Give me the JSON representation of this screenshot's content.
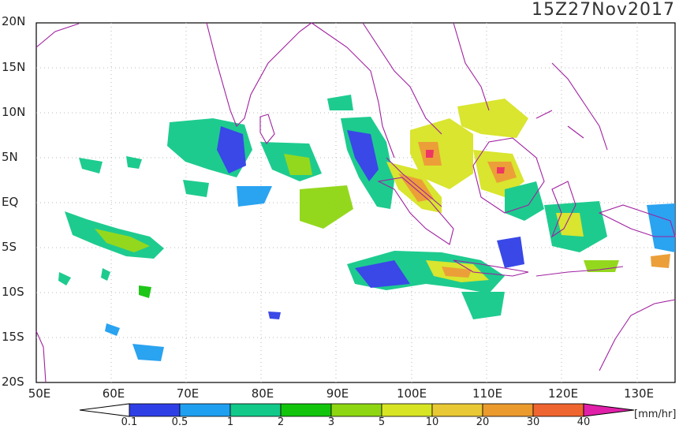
{
  "timestamp": "15Z27Nov2017",
  "axes": {
    "lat_labels": [
      "20N",
      "15N",
      "10N",
      "5N",
      "EQ",
      "5S",
      "10S",
      "15S",
      "20S"
    ],
    "lon_labels": [
      "50E",
      "60E",
      "70E",
      "80E",
      "90E",
      "100E",
      "110E",
      "120E",
      "130E"
    ]
  },
  "colorbar": {
    "ticks": [
      "0.1",
      "0.5",
      "1",
      "2",
      "3",
      "5",
      "10",
      "20",
      "30",
      "40"
    ],
    "units": "[mm/hr]",
    "colors": [
      "#2f3fe6",
      "#1f9ff0",
      "#12c98a",
      "#12c40c",
      "#8fd612",
      "#d7e424",
      "#e9c835",
      "#eb9a2e",
      "#ef6530",
      "#ee2c5c",
      "#e020a8"
    ]
  },
  "map": {
    "region": "Indian Ocean / Maritime Continent",
    "lon_range": [
      50,
      135
    ],
    "lat_range": [
      -20,
      20
    ],
    "coastline_color": "#a020a0",
    "grid": "dotted"
  }
}
